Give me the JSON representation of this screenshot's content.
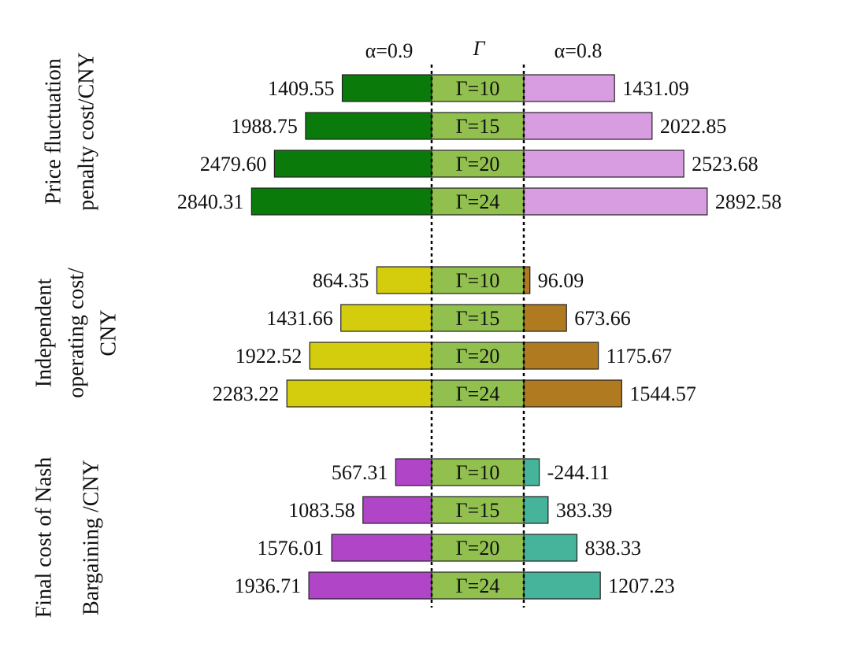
{
  "chart_data": {
    "type": "bar",
    "layout": "butterfly (diverging horizontal bars)",
    "header": {
      "left": "α=0.9",
      "middle": "Γ",
      "right": "α=0.8"
    },
    "center_labels": [
      "Γ=10",
      "Γ=15",
      "Γ=20",
      "Γ=24"
    ],
    "center_color": "#92c04f",
    "groups": [
      {
        "label_lines": [
          "Price fluctuation",
          "penalty cost/CNY"
        ],
        "left_color": "#0a7a0a",
        "right_color": "#d89ce0",
        "left_values": [
          "1409.55",
          "1988.75",
          "2479.60",
          "2840.31"
        ],
        "right_values": [
          "1431.09",
          "2022.85",
          "2523.68",
          "2892.58"
        ]
      },
      {
        "label_lines": [
          "Independent",
          "operating cost/",
          "CNY"
        ],
        "left_color": "#d4cd0e",
        "right_color": "#b07a20",
        "left_values": [
          "864.35",
          "1431.66",
          "1922.52",
          "2283.22"
        ],
        "right_values": [
          "96.09",
          "673.66",
          "1175.67",
          "1544.57"
        ]
      },
      {
        "label_lines": [
          "Final cost of Nash",
          "Bargaining /CNY"
        ],
        "left_color": "#b145c8",
        "right_color": "#45b49a",
        "left_values": [
          "567.31",
          "1083.58",
          "1576.01",
          "1936.71"
        ],
        "right_values": [
          "-244.11",
          "383.39",
          "838.33",
          "1207.23"
        ]
      }
    ]
  }
}
